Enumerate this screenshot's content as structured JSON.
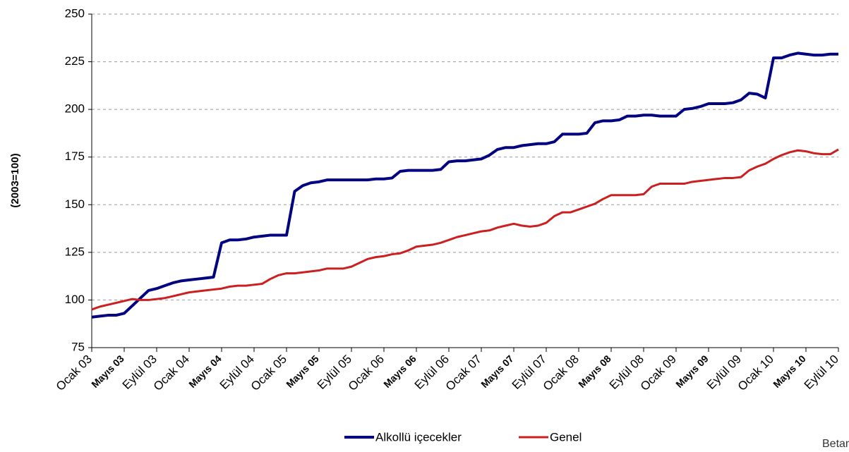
{
  "chart_data": {
    "type": "line",
    "y_label": "(2003=100)",
    "logo": "Betam",
    "categories": [
      "Ocak 03",
      null,
      null,
      null,
      "Mayıs 03",
      null,
      null,
      null,
      "Eylül 03",
      null,
      null,
      null,
      "Ocak 04",
      null,
      null,
      null,
      "Mayıs 04",
      null,
      null,
      null,
      "Eylül 04",
      null,
      null,
      null,
      "Ocak 05",
      null,
      null,
      null,
      "Mayıs 05",
      null,
      null,
      null,
      "Eylül 05",
      null,
      null,
      null,
      "Ocak 06",
      null,
      null,
      null,
      "Mayıs 06",
      null,
      null,
      null,
      "Eylül 06",
      null,
      null,
      null,
      "Ocak 07",
      null,
      null,
      null,
      "Mayıs 07",
      null,
      null,
      null,
      "Eylül 07",
      null,
      null,
      null,
      "Ocak 08",
      null,
      null,
      null,
      "Mayıs 08",
      null,
      null,
      null,
      "Eylül 08",
      null,
      null,
      null,
      "Ocak 09",
      null,
      null,
      null,
      "Mayıs 09",
      null,
      null,
      null,
      "Eylül 09",
      null,
      null,
      null,
      "Ocak 10",
      null,
      null,
      null,
      "Mayıs 10",
      null,
      null,
      null,
      "Eylül 10"
    ],
    "series": [
      {
        "name": "Alkollü içecekler",
        "color": "#000080",
        "values": [
          91,
          91.5,
          92,
          92,
          93,
          97,
          101,
          105,
          106,
          107.5,
          109,
          110,
          110.5,
          111,
          111.5,
          112,
          130,
          131.5,
          131.5,
          132,
          133,
          133.5,
          134,
          134,
          134,
          157,
          160,
          161.5,
          162,
          163,
          163,
          163,
          163,
          163,
          163,
          163.5,
          163.5,
          164,
          167.5,
          168,
          168,
          168,
          168,
          168.5,
          172.5,
          173,
          173,
          173.5,
          174,
          176,
          179,
          180,
          180,
          181,
          181.5,
          182,
          182,
          183,
          187,
          187,
          187,
          187.5,
          193,
          194,
          194,
          194.5,
          196.5,
          196.5,
          197,
          197,
          196.5,
          196.5,
          196.5,
          200,
          200.5,
          201.5,
          203,
          203,
          203,
          203.5,
          205,
          208.5,
          208,
          206,
          227,
          227,
          228.5,
          229.5,
          229,
          228.5,
          228.5,
          229,
          229
        ]
      },
      {
        "name": "Genel",
        "color": "#cc1f1f",
        "values": [
          95,
          96.5,
          97.5,
          98.5,
          99.5,
          100.5,
          100,
          100,
          100.5,
          101,
          102,
          103,
          104,
          104.5,
          105,
          105.5,
          106,
          107,
          107.5,
          107.5,
          108,
          108.5,
          111,
          113,
          114,
          114,
          114.5,
          115,
          115.5,
          116.5,
          116.5,
          116.5,
          117.5,
          119.5,
          121.5,
          122.5,
          123,
          124,
          124.5,
          126,
          128,
          128.5,
          129,
          130,
          131.5,
          133,
          134,
          135,
          136,
          136.5,
          138,
          139,
          140,
          139,
          138.5,
          139,
          140.5,
          144,
          146,
          146,
          147.5,
          149,
          150.5,
          153,
          155,
          155,
          155,
          155,
          155.5,
          159.5,
          161,
          161,
          161,
          161,
          162,
          162.5,
          163,
          163.5,
          164,
          164,
          164.5,
          168,
          170,
          171.5,
          174,
          176,
          177.5,
          178.5,
          178,
          177,
          176.5,
          176.5,
          179
        ]
      }
    ],
    "ylim": [
      75,
      250
    ],
    "yticks": [
      75,
      100,
      125,
      150,
      175,
      200,
      225,
      250
    ],
    "grid": true
  }
}
